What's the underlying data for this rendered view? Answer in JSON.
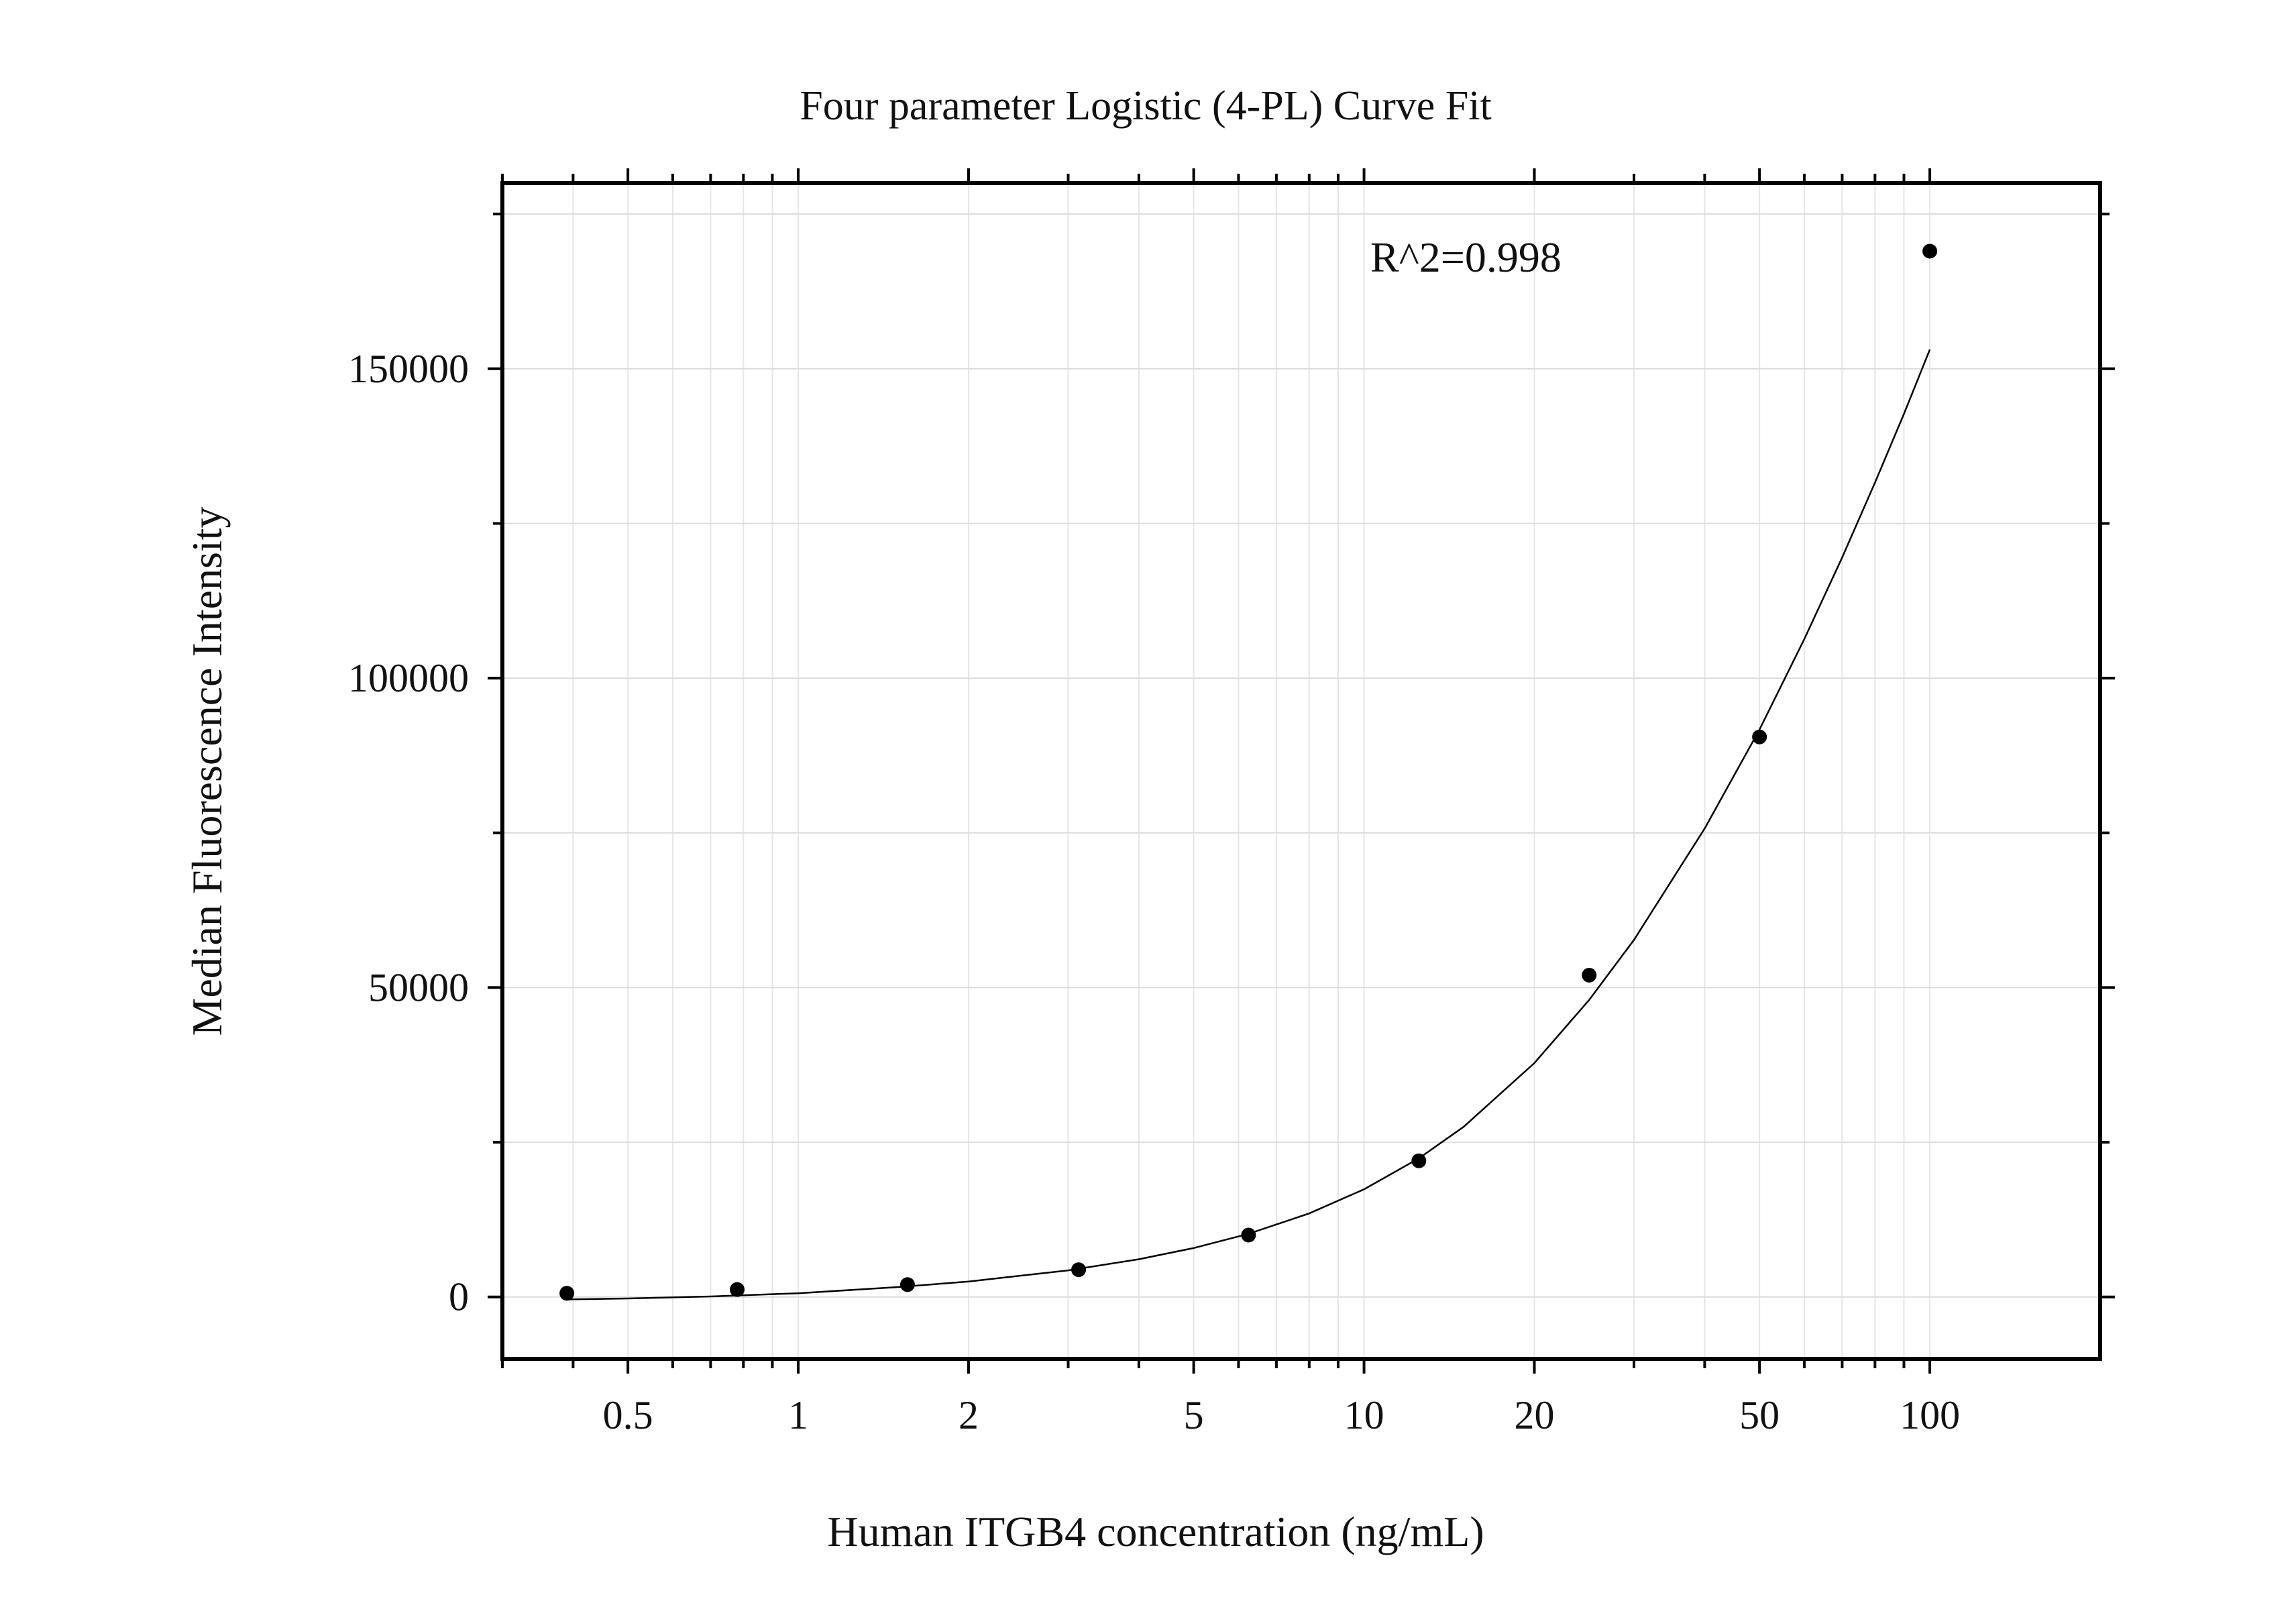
{
  "chart_data": {
    "type": "scatter",
    "title": "Four parameter Logistic (4-PL) Curve Fit",
    "xlabel": "Human ITGB4 concentration (ng/mL)",
    "ylabel": "Median Fluorescence Intensity",
    "annotation": "R^2=0.998",
    "x_scale": "log",
    "xlim": [
      0.3,
      200
    ],
    "ylim": [
      -10000,
      180000
    ],
    "grid": true,
    "x_ticks": [
      {
        "value": 0.5,
        "label": "0.5"
      },
      {
        "value": 1,
        "label": "1"
      },
      {
        "value": 2,
        "label": "2"
      },
      {
        "value": 5,
        "label": "5"
      },
      {
        "value": 10,
        "label": "10"
      },
      {
        "value": 20,
        "label": "20"
      },
      {
        "value": 50,
        "label": "50"
      },
      {
        "value": 100,
        "label": "100"
      }
    ],
    "y_ticks": [
      {
        "value": 0,
        "label": "0"
      },
      {
        "value": 50000,
        "label": "50000"
      },
      {
        "value": 100000,
        "label": "100000"
      },
      {
        "value": 150000,
        "label": "150000"
      }
    ],
    "y_minor_ticks": [
      25000,
      75000,
      125000,
      175000
    ],
    "series": [
      {
        "type": "scatter",
        "x": [
          0.39,
          0.78,
          1.56,
          3.13,
          6.25,
          12.5,
          25,
          50,
          100
        ],
        "y": [
          600,
          1200,
          2000,
          4400,
          10000,
          22000,
          52000,
          90500,
          169000
        ]
      },
      {
        "type": "line",
        "x": [
          0.39,
          0.5,
          0.7,
          1,
          1.5,
          2,
          3,
          4,
          5,
          6.25,
          8,
          10,
          12.5,
          15,
          20,
          25,
          30,
          40,
          50,
          60,
          70,
          80,
          90,
          100
        ],
        "y": [
          -400,
          -250,
          80,
          600,
          1600,
          2500,
          4300,
          6100,
          7900,
          10200,
          13500,
          17400,
          22400,
          27500,
          37800,
          48000,
          57700,
          75700,
          91700,
          106300,
          119500,
          131600,
          142700,
          153100
        ]
      }
    ]
  }
}
